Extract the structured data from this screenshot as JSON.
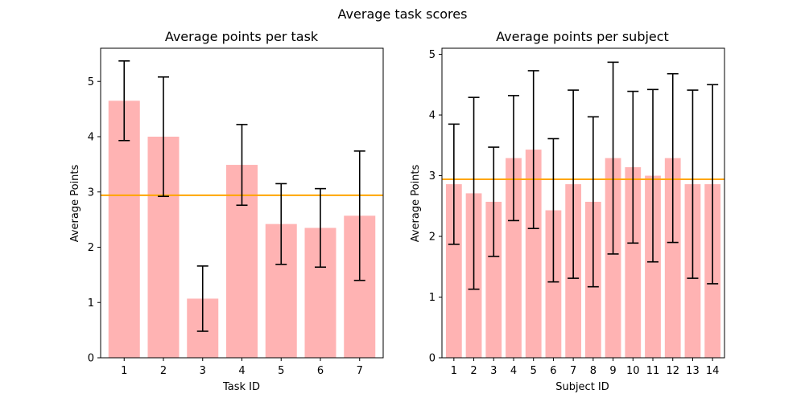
{
  "figure": {
    "title": "Average task scores"
  },
  "chart_data": [
    {
      "type": "bar",
      "title": "Average points per task",
      "xlabel": "Task ID",
      "ylabel": "Average Points",
      "categories": [
        "1",
        "2",
        "3",
        "4",
        "5",
        "6",
        "7"
      ],
      "values": [
        4.65,
        4.0,
        1.07,
        3.49,
        2.42,
        2.35,
        2.57
      ],
      "error": [
        0.72,
        1.08,
        0.59,
        0.73,
        0.73,
        0.71,
        1.17
      ],
      "reference_line": 2.94,
      "ylim": [
        0,
        5.6
      ],
      "yticks": [
        0,
        1,
        2,
        3,
        4,
        5
      ],
      "bar_color": "#ffb3b3",
      "error_color": "#000000",
      "line_color": "#ffa500",
      "grid": false
    },
    {
      "type": "bar",
      "title": "Average points per subject",
      "xlabel": "Subject ID",
      "ylabel": "Average Points",
      "categories": [
        "1",
        "2",
        "3",
        "4",
        "5",
        "6",
        "7",
        "8",
        "9",
        "10",
        "11",
        "12",
        "13",
        "14"
      ],
      "values": [
        2.86,
        2.71,
        2.57,
        3.29,
        3.43,
        2.43,
        2.86,
        2.57,
        3.29,
        3.14,
        3.0,
        3.29,
        2.86,
        2.86
      ],
      "error": [
        0.99,
        1.58,
        0.9,
        1.03,
        1.3,
        1.18,
        1.55,
        1.4,
        1.58,
        1.25,
        1.42,
        1.39,
        1.55,
        1.64
      ],
      "reference_line": 2.94,
      "ylim": [
        0,
        5.1
      ],
      "yticks": [
        0,
        1,
        2,
        3,
        4,
        5
      ],
      "bar_color": "#ffb3b3",
      "error_color": "#000000",
      "line_color": "#ffa500",
      "grid": false
    }
  ]
}
